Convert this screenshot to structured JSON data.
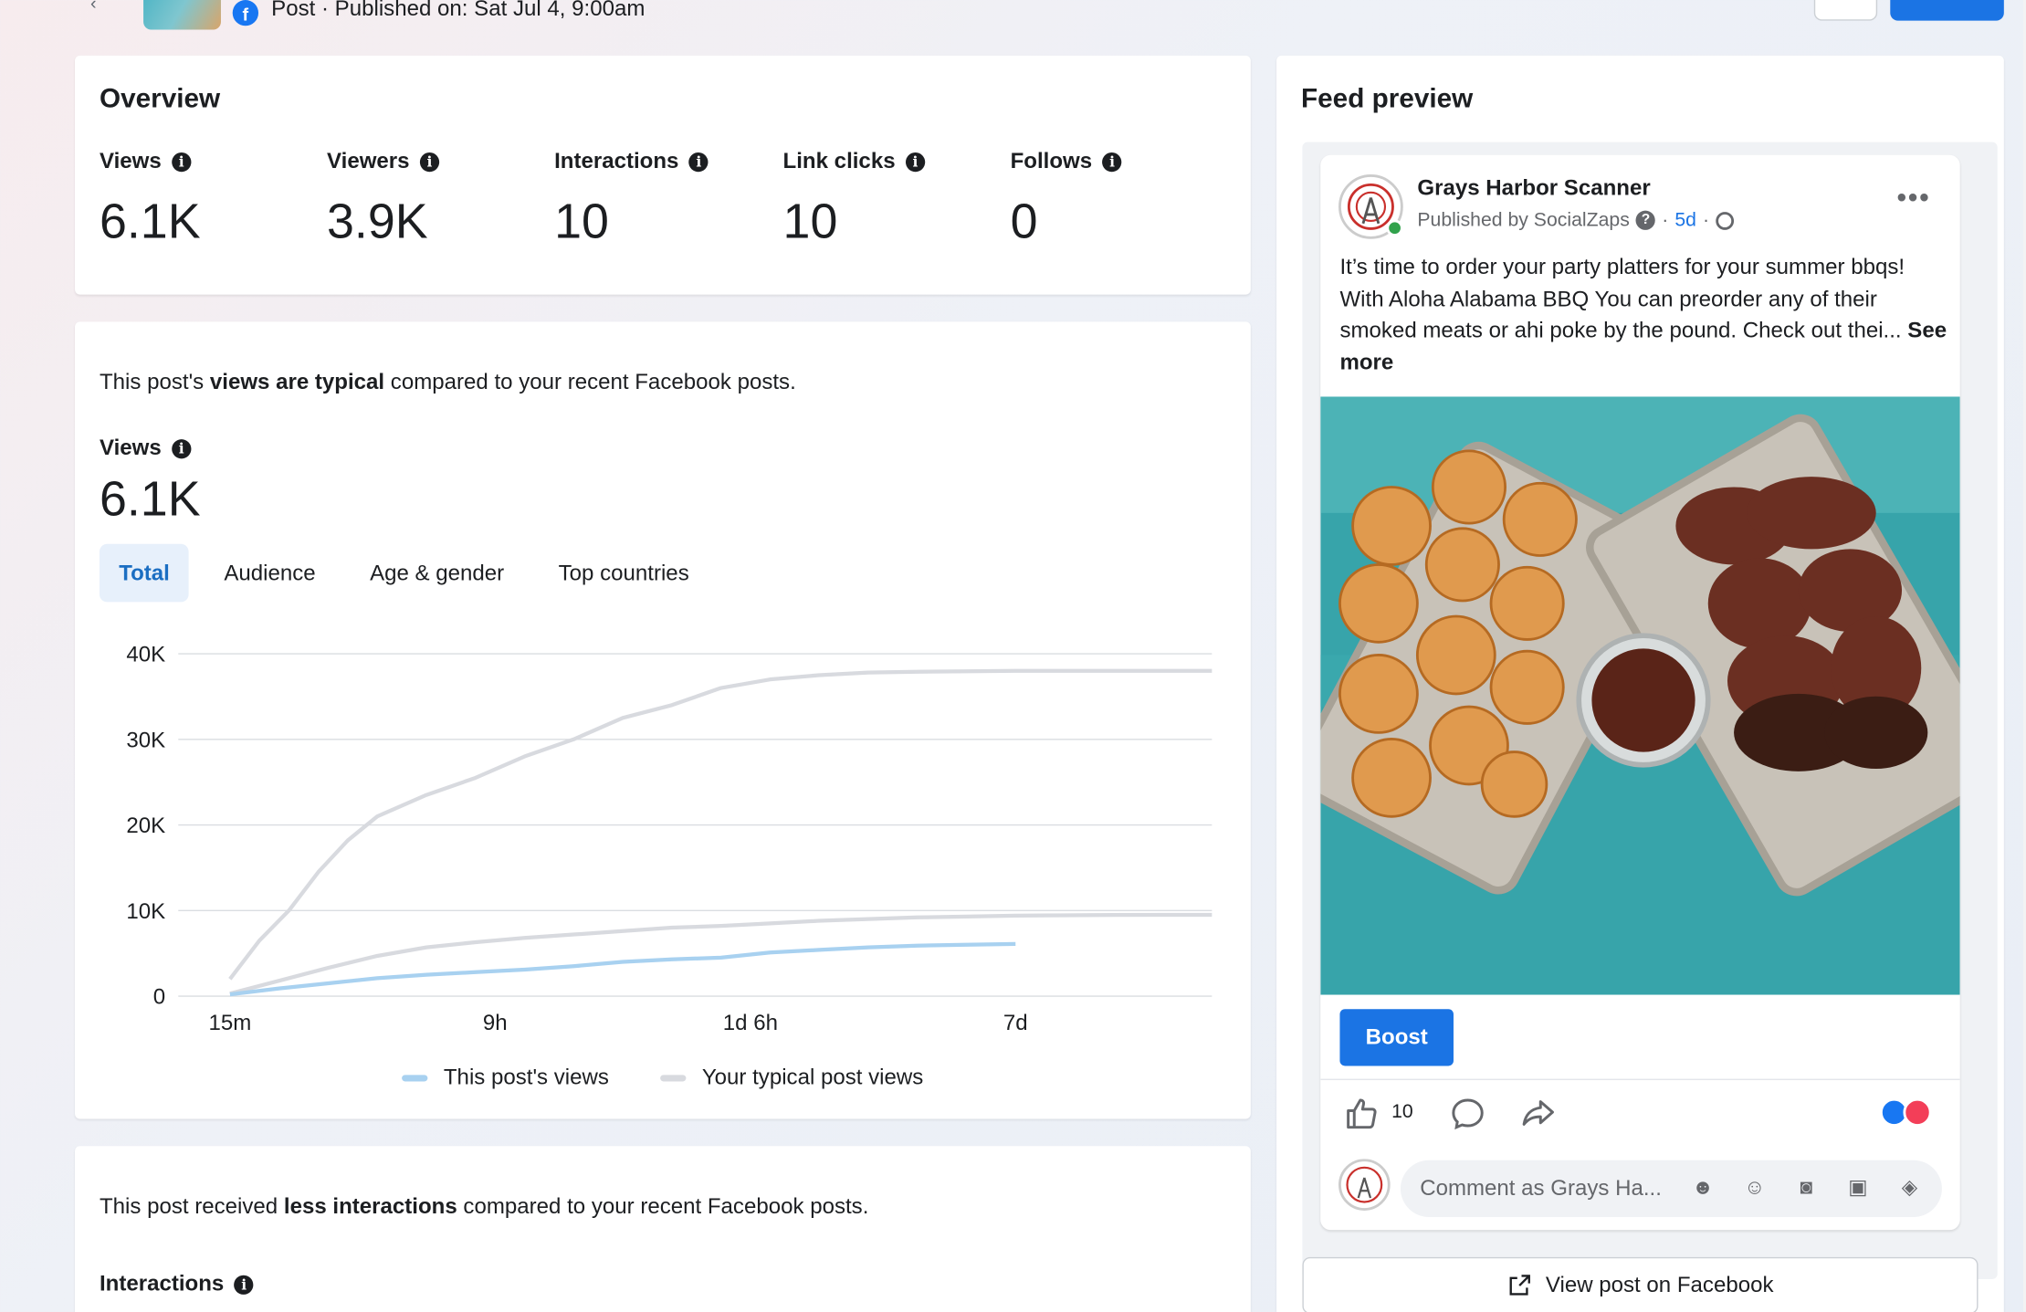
{
  "header": {
    "post_meta": "Post · Published on: Sat Jul 4, 9:00am"
  },
  "overview": {
    "title": "Overview",
    "metrics": [
      {
        "label": "Views",
        "value": "6.1K"
      },
      {
        "label": "Viewers",
        "value": "3.9K"
      },
      {
        "label": "Interactions",
        "value": "10"
      },
      {
        "label": "Link clicks",
        "value": "10"
      },
      {
        "label": "Follows",
        "value": "0"
      }
    ]
  },
  "views_card": {
    "summary_pre": "This post's ",
    "summary_bold": "views are typical",
    "summary_post": " compared to your recent Facebook posts.",
    "label": "Views",
    "value": "6.1K",
    "tabs": [
      "Total",
      "Audience",
      "Age & gender",
      "Top countries"
    ],
    "active_tab": "Total"
  },
  "chart_data": {
    "type": "line",
    "x_ticks": [
      "15m",
      "9h",
      "1d 6h",
      "7d"
    ],
    "y_ticks": [
      "40K",
      "30K",
      "20K",
      "10K",
      "0"
    ],
    "ylim": [
      0,
      40000
    ],
    "series": [
      {
        "name": "This post's views",
        "color": "#a8d1f0",
        "x": [
          0,
          0.05,
          0.1,
          0.15,
          0.2,
          0.25,
          0.3,
          0.35,
          0.4,
          0.45,
          0.5,
          0.55,
          0.6,
          0.65,
          0.7,
          0.75,
          0.8
        ],
        "values": [
          200,
          900,
          1500,
          2100,
          2500,
          2800,
          3100,
          3500,
          4000,
          4300,
          4500,
          5100,
          5400,
          5700,
          5900,
          6000,
          6100
        ]
      },
      {
        "name": "Your typical post views",
        "color": "#d8dadf",
        "x": [
          0,
          0.05,
          0.1,
          0.15,
          0.2,
          0.25,
          0.3,
          0.35,
          0.4,
          0.45,
          0.5,
          0.55,
          0.6,
          0.65,
          0.7,
          0.75,
          0.8,
          0.85,
          0.9,
          0.95,
          1.0
        ],
        "values": [
          300,
          1800,
          3300,
          4700,
          5700,
          6300,
          6800,
          7200,
          7600,
          8000,
          8200,
          8500,
          8800,
          9000,
          9200,
          9300,
          9400,
          9450,
          9480,
          9500,
          9500
        ]
      },
      {
        "name": "",
        "color": "#d8dadf",
        "x": [
          0,
          0.03,
          0.06,
          0.09,
          0.12,
          0.15,
          0.2,
          0.25,
          0.3,
          0.35,
          0.4,
          0.45,
          0.5,
          0.55,
          0.6,
          0.65,
          0.7,
          0.75,
          0.8,
          0.85,
          0.9,
          0.95,
          1.0
        ],
        "values": [
          2000,
          6500,
          10000,
          14500,
          18200,
          21000,
          23500,
          25500,
          28000,
          30000,
          32500,
          34000,
          36000,
          37000,
          37500,
          37800,
          37900,
          37950,
          38000,
          38000,
          38000,
          38000,
          38000
        ]
      }
    ],
    "legend": [
      "This post's views",
      "Your typical post views"
    ]
  },
  "interactions_card": {
    "summary_pre": "This post received ",
    "summary_bold": "less interactions",
    "summary_post": " compared to your recent Facebook posts.",
    "label": "Interactions"
  },
  "feed": {
    "title": "Feed preview",
    "page_name": "Grays Harbor Scanner",
    "published_by": "Published by SocialZaps",
    "age": "5d",
    "text": "It’s time to order your party platters for your summer bbqs!  With Aloha Alabama BBQ You can preorder any of their smoked meats or ahi poke by the pound. Check out thei...",
    "see_more": "See more",
    "boost_label": "Boost",
    "like_count": "10",
    "comment_placeholder": "Comment as Grays Ha...",
    "view_on_fb": "View post on Facebook"
  }
}
